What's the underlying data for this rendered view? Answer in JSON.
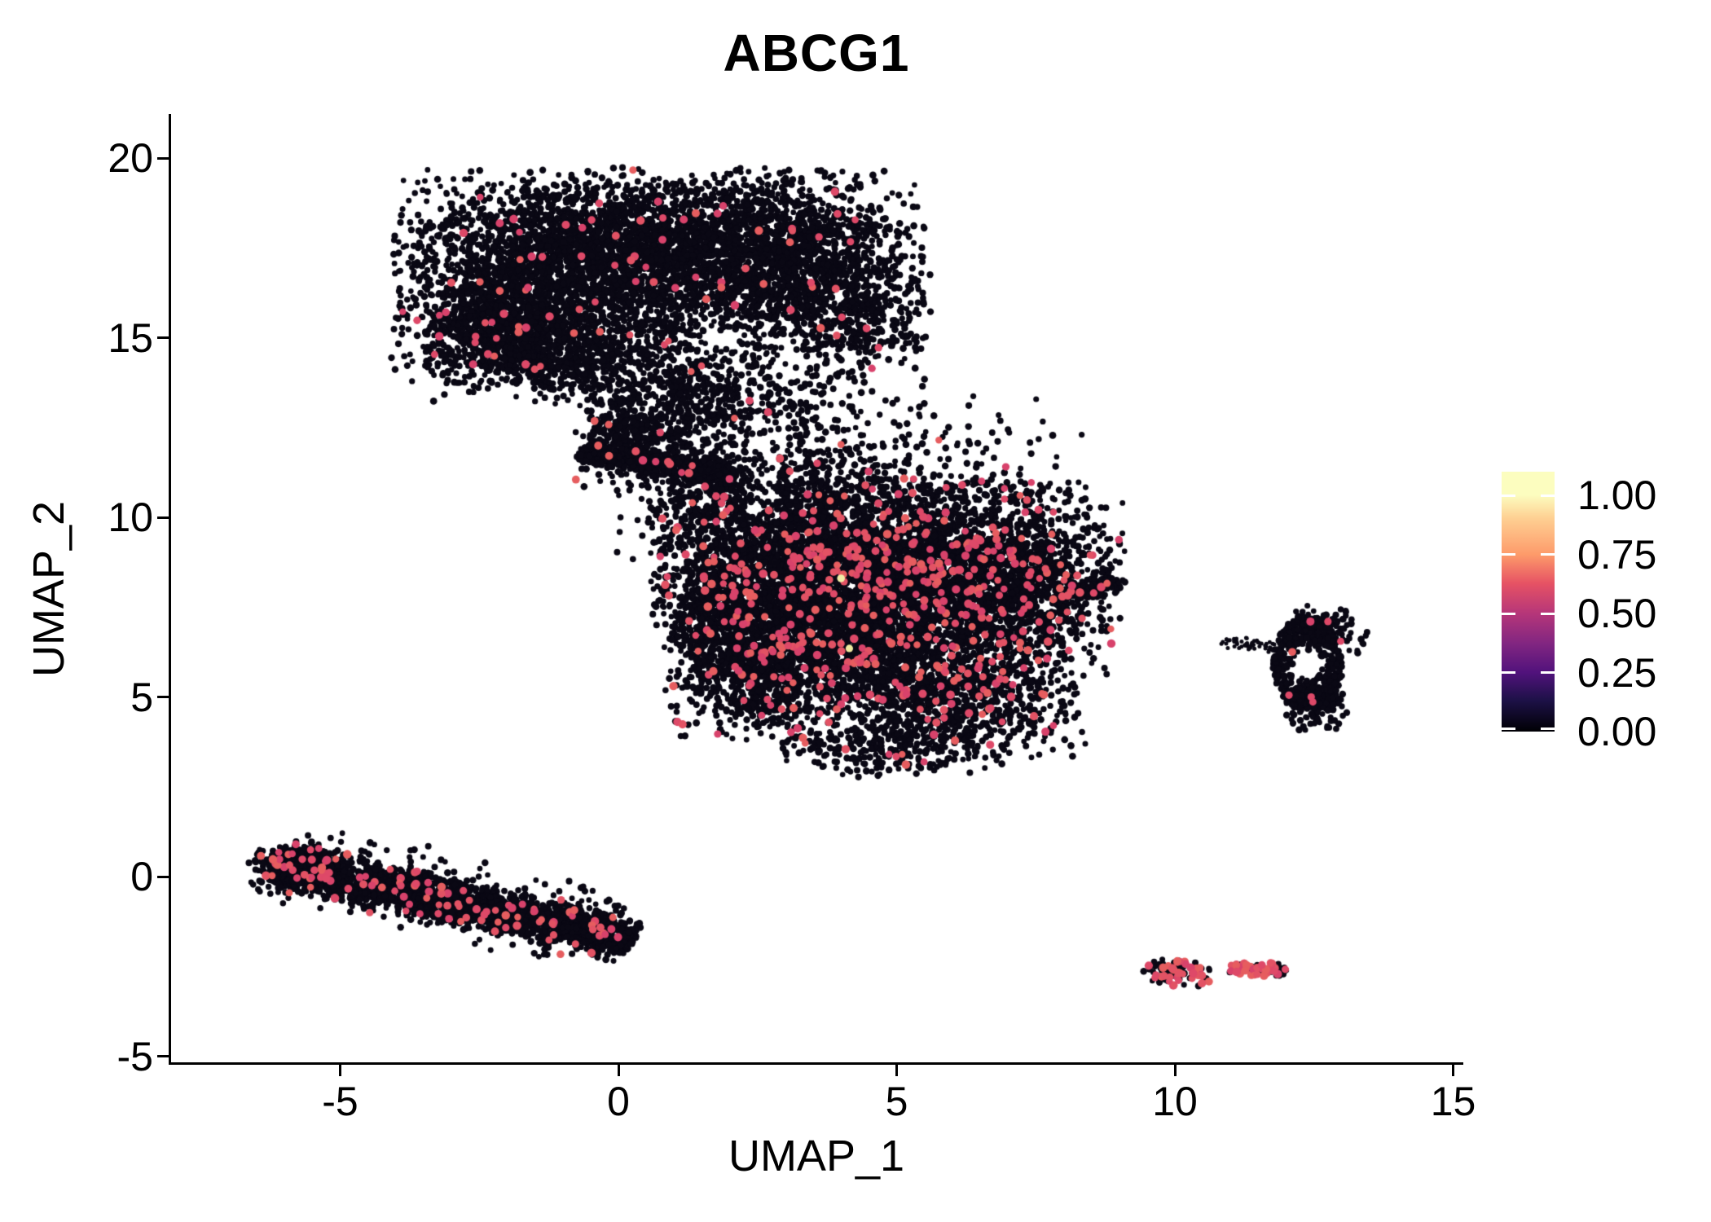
{
  "chart_data": {
    "type": "scatter",
    "title": "ABCG1",
    "xlabel": "UMAP_1",
    "ylabel": "UMAP_2",
    "x_ticks": [
      -5,
      0,
      5,
      10,
      15
    ],
    "y_ticks": [
      -5,
      0,
      5,
      10,
      15,
      20
    ],
    "xlim": [
      -8.0,
      15.2
    ],
    "ylim": [
      -5.2,
      21.2
    ],
    "grid": false,
    "colors": {
      "background": "#ffffff",
      "axis": "#000000",
      "point_black": "#0a0814",
      "red_palette": [
        "#DE4968",
        "#E25264",
        "#D8426B",
        "#E65D5F"
      ],
      "yellow_high": "#F2EDA6"
    },
    "legend": {
      "position": "right",
      "values": [
        "1.00",
        "0.75",
        "0.50",
        "0.25",
        "0.00"
      ],
      "numeric_values": [
        1.0,
        0.75,
        0.5,
        0.25,
        0.0
      ],
      "vmax": 1.1,
      "gradient": [
        {
          "p": 0.0,
          "c": "#FCFDBF"
        },
        {
          "p": 0.09,
          "c": "#FCFDBF"
        },
        {
          "p": 0.18,
          "c": "#FECF92"
        },
        {
          "p": 0.32,
          "c": "#FD9A6A"
        },
        {
          "p": 0.43,
          "c": "#E65264"
        },
        {
          "p": 0.545,
          "c": "#B63679"
        },
        {
          "p": 0.66,
          "c": "#822681"
        },
        {
          "p": 0.773,
          "c": "#51127C"
        },
        {
          "p": 0.88,
          "c": "#1D1147"
        },
        {
          "p": 1.0,
          "c": "#000004"
        }
      ]
    },
    "clusters": [
      {
        "name": "top-main",
        "kind": "gauss",
        "cx": -1.35,
        "cy": 16.7,
        "sx": 1.3,
        "sy": 1.45,
        "n": 2400,
        "red": 0.013
      },
      {
        "name": "top-mid",
        "kind": "gauss",
        "cx": 1.2,
        "cy": 17.35,
        "sx": 1.25,
        "sy": 1.1,
        "n": 1700,
        "red": 0.013
      },
      {
        "name": "top-right",
        "kind": "gauss",
        "cx": 3.3,
        "cy": 17.1,
        "sx": 1.05,
        "sy": 1.25,
        "n": 1300,
        "red": 0.015
      },
      {
        "name": "top-left-low",
        "kind": "gauss",
        "cx": -2.2,
        "cy": 15.2,
        "sx": 0.62,
        "sy": 0.72,
        "n": 600,
        "red": 0.01
      },
      {
        "name": "top-bottom",
        "kind": "gauss",
        "cx": -0.5,
        "cy": 14.4,
        "sx": 1.4,
        "sy": 0.6,
        "n": 550,
        "red": 0.01
      },
      {
        "name": "top-tail",
        "kind": "gauss",
        "cx": 0.9,
        "cy": 13.0,
        "sx": 0.75,
        "sy": 0.8,
        "n": 380,
        "red": 0.012
      },
      {
        "name": "top-tail-right",
        "kind": "gauss",
        "cx": 2.7,
        "cy": 13.2,
        "sx": 0.9,
        "sy": 0.75,
        "n": 260,
        "red": 0.015
      },
      {
        "name": "top-right-low",
        "kind": "gauss",
        "cx": 4.35,
        "cy": 15.5,
        "sx": 0.6,
        "sy": 0.85,
        "n": 300,
        "red": 0.012
      },
      {
        "name": "neck-core",
        "kind": "band",
        "x1": -0.7,
        "y1": 11.85,
        "x2": 2.1,
        "y2": 11.15,
        "sd": 0.16,
        "n": 620,
        "red": 0.012
      },
      {
        "name": "neck-halo",
        "kind": "band",
        "x1": -0.6,
        "y1": 11.9,
        "x2": 2.1,
        "y2": 11.2,
        "sd": 0.5,
        "n": 260,
        "red": 0.012
      },
      {
        "name": "neck-knot",
        "kind": "gauss",
        "cx": 0.2,
        "cy": 12.3,
        "sx": 0.5,
        "sy": 0.4,
        "n": 150,
        "red": 0.01
      },
      {
        "name": "strait-1",
        "kind": "gauss",
        "cx": 1.6,
        "cy": 10.3,
        "sx": 0.8,
        "sy": 0.75,
        "n": 220,
        "red": 0.02
      },
      {
        "name": "strait-2",
        "kind": "gauss",
        "cx": 3.3,
        "cy": 11.4,
        "sx": 1.1,
        "sy": 0.6,
        "n": 160,
        "red": 0.02
      },
      {
        "name": "strait-3",
        "kind": "gauss",
        "cx": 5.9,
        "cy": 12.1,
        "sx": 1.2,
        "sy": 0.85,
        "n": 90,
        "red": 0.01
      },
      {
        "name": "mid-main",
        "kind": "gauss",
        "cx": 4.6,
        "cy": 7.2,
        "sx": 1.65,
        "sy": 1.3,
        "n": 3000,
        "red": 0.06
      },
      {
        "name": "mid-upper-left",
        "kind": "gauss",
        "cx": 3.3,
        "cy": 9.0,
        "sx": 1.3,
        "sy": 1.0,
        "n": 1700,
        "red": 0.06
      },
      {
        "name": "mid-upper-right",
        "kind": "gauss",
        "cx": 6.3,
        "cy": 8.9,
        "sx": 1.35,
        "sy": 1.0,
        "n": 1500,
        "red": 0.06
      },
      {
        "name": "mid-lower-left",
        "kind": "gauss",
        "cx": 2.6,
        "cy": 5.9,
        "sx": 0.85,
        "sy": 1.0,
        "n": 1000,
        "red": 0.055
      },
      {
        "name": "mid-lower-right",
        "kind": "gauss",
        "cx": 5.9,
        "cy": 4.9,
        "sx": 1.2,
        "sy": 0.85,
        "n": 850,
        "red": 0.055
      },
      {
        "name": "mid-right",
        "kind": "gauss",
        "cx": 7.5,
        "cy": 7.5,
        "sx": 0.7,
        "sy": 0.9,
        "n": 400,
        "red": 0.05
      },
      {
        "name": "mid-beak",
        "kind": "band",
        "x1": 8.15,
        "y1": 7.95,
        "x2": 8.95,
        "y2": 8.2,
        "sd": 0.14,
        "n": 130,
        "red": 0.05
      },
      {
        "name": "mid-top-fringe",
        "kind": "gauss",
        "cx": 4.4,
        "cy": 10.7,
        "sx": 1.6,
        "sy": 0.5,
        "n": 300,
        "red": 0.04
      },
      {
        "name": "mid-left-edge",
        "kind": "gauss",
        "cx": 1.7,
        "cy": 7.6,
        "sx": 0.55,
        "sy": 0.9,
        "n": 300,
        "red": 0.05
      },
      {
        "name": "mid-bottom",
        "kind": "gauss",
        "cx": 4.8,
        "cy": 3.6,
        "sx": 0.9,
        "sy": 0.45,
        "n": 220,
        "red": 0.05
      },
      {
        "name": "ring",
        "kind": "ring",
        "cx": 12.38,
        "cy": 5.95,
        "rx": 0.62,
        "ry": 1.3,
        "hole": 0.35,
        "n": 480,
        "red": 0.008
      },
      {
        "name": "ring-bottom",
        "kind": "gauss",
        "cx": 12.55,
        "cy": 4.9,
        "sx": 0.28,
        "sy": 0.4,
        "n": 160,
        "red": 0.01
      },
      {
        "name": "ring-topright",
        "kind": "gauss",
        "cx": 12.75,
        "cy": 6.85,
        "sx": 0.35,
        "sy": 0.35,
        "n": 120,
        "red": 0.02
      },
      {
        "name": "ring-tail",
        "kind": "band",
        "x1": 10.85,
        "y1": 6.6,
        "x2": 11.75,
        "y2": 6.35,
        "sd": 0.09,
        "n": 55,
        "red": 0,
        "dot": 2.5
      },
      {
        "name": "strip-core",
        "kind": "band",
        "x1": -6.15,
        "y1": 0.32,
        "x2": 0.25,
        "y2": -1.78,
        "sd": 0.3,
        "n": 2000,
        "red": 0.035
      },
      {
        "name": "strip-halo",
        "kind": "band",
        "x1": -6.0,
        "y1": 0.45,
        "x2": 0.0,
        "y2": -1.55,
        "sd": 0.55,
        "n": 450,
        "red": 0.03
      },
      {
        "name": "strip-left-end",
        "kind": "gauss",
        "cx": -5.85,
        "cy": 0.25,
        "sx": 0.4,
        "sy": 0.32,
        "n": 260,
        "red": 0.1
      },
      {
        "name": "island-left",
        "kind": "gauss",
        "cx": 10.0,
        "cy": -2.68,
        "sx": 0.3,
        "sy": 0.2,
        "n": 90,
        "red": 0.35
      },
      {
        "name": "island-right",
        "kind": "band",
        "x1": 11.0,
        "y1": -2.5,
        "x2": 12.05,
        "y2": -2.62,
        "sd": 0.1,
        "n": 85,
        "red": 0.38
      }
    ],
    "special_points": [
      {
        "x": 10.62,
        "y": -2.6,
        "color": "#0a0814",
        "r": 3.6
      },
      {
        "x": 6.68,
        "y": 3.67,
        "color": "#DE4968",
        "r": 5.0
      },
      {
        "x": 4.0,
        "y": 8.3,
        "color": "#F2EDA6",
        "r": 4.8
      },
      {
        "x": 4.15,
        "y": 6.35,
        "color": "#EFE9A0",
        "r": 4.6
      },
      {
        "x": 12.75,
        "y": 7.1,
        "color": "#DE4968",
        "r": 4.6
      },
      {
        "x": 12.98,
        "y": 6.55,
        "color": "#DE4968",
        "r": 4.4
      },
      {
        "x": 12.05,
        "y": 5.05,
        "color": "#DE4968",
        "r": 4.6
      },
      {
        "x": 12.45,
        "y": 5.0,
        "color": "#DE4968",
        "r": 4.6
      }
    ]
  }
}
